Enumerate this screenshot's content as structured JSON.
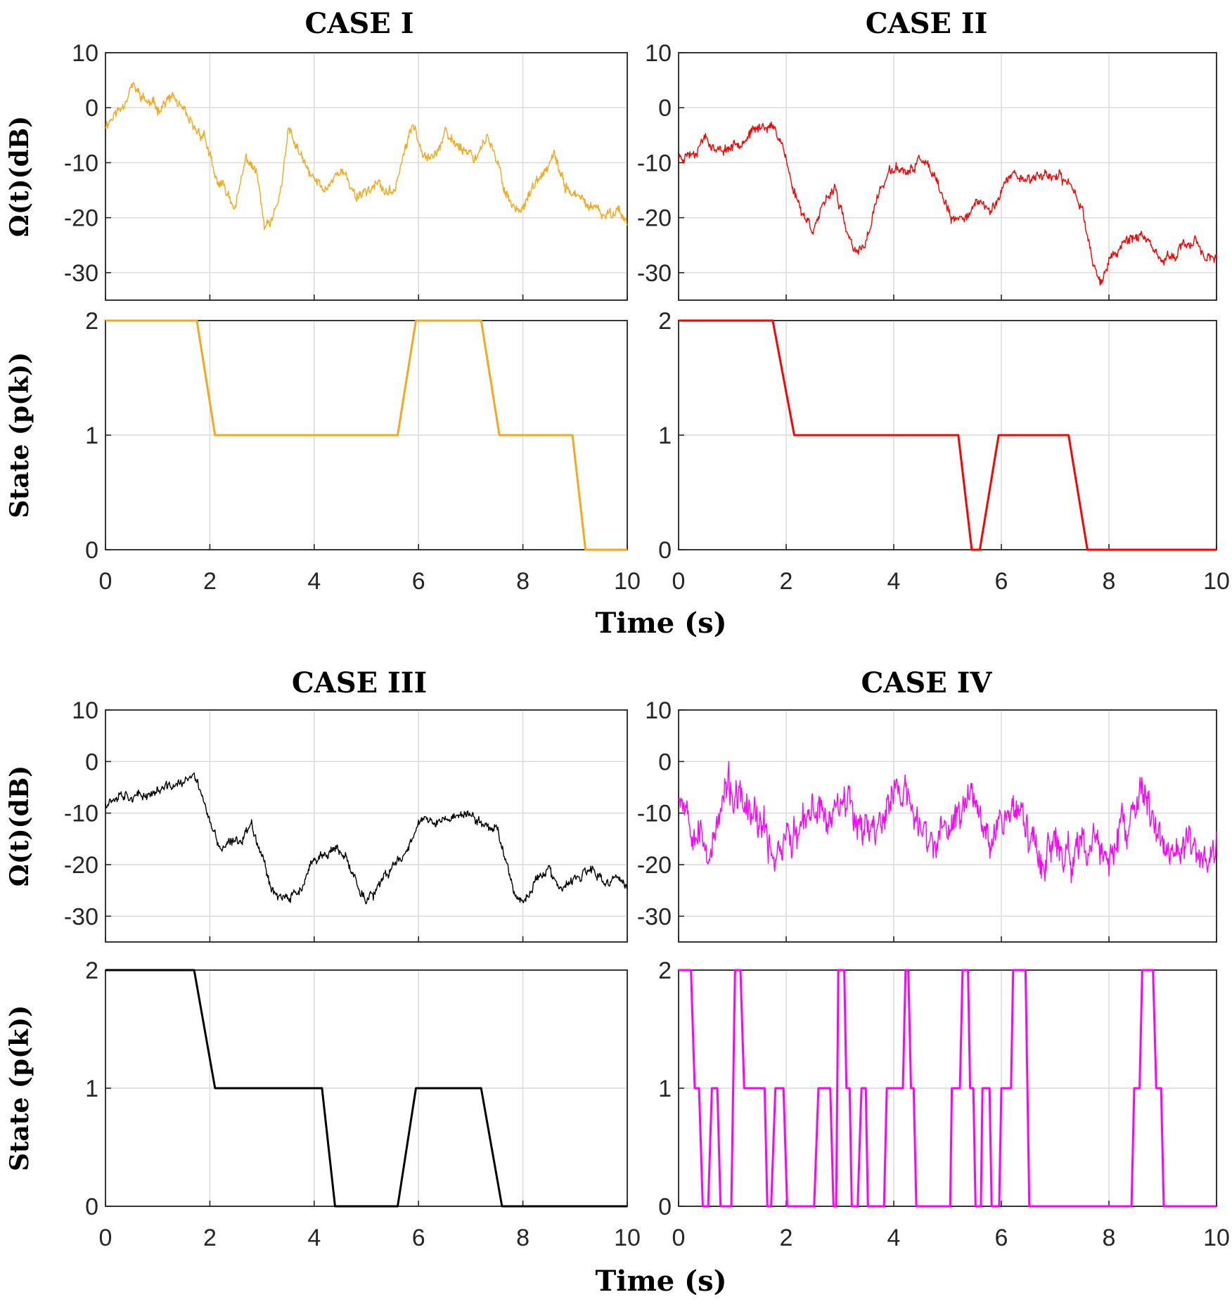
{
  "chart_data": {
    "type": "line",
    "figure": "Channel gain and state sequence per case",
    "panel_columns": [
      "left",
      "right"
    ],
    "shared_axes": {
      "xlabel": "Time (s)",
      "x_range": [
        0,
        10
      ],
      "x_ticks": [
        "0",
        "2",
        "4",
        "6",
        "8",
        "10"
      ],
      "signal_ylabel": "Ω(t)(dB)",
      "signal_y_range": [
        -35,
        10
      ],
      "signal_y_ticks": [
        "10",
        "0",
        "-10",
        "-20",
        "-30"
      ],
      "signal_y_tick_values": [
        10,
        0,
        -10,
        -20,
        -30
      ],
      "state_ylabel": "State (p(k))",
      "state_y_range": [
        0,
        2
      ],
      "state_y_ticks": [
        "2",
        "1",
        "0"
      ],
      "state_y_tick_values": [
        2,
        1,
        0
      ],
      "grid": true
    },
    "cases": [
      {
        "title": "CASE I",
        "color": "#f5a81c",
        "signal_anchors": [
          [
            0,
            -3
          ],
          [
            0.3,
            0
          ],
          [
            0.5,
            4
          ],
          [
            0.8,
            1
          ],
          [
            1.0,
            0
          ],
          [
            1.3,
            2
          ],
          [
            1.5,
            -1
          ],
          [
            1.7,
            -4
          ],
          [
            1.9,
            -5
          ],
          [
            2.1,
            -13
          ],
          [
            2.3,
            -15
          ],
          [
            2.5,
            -18
          ],
          [
            2.7,
            -9
          ],
          [
            2.9,
            -12
          ],
          [
            3.05,
            -22
          ],
          [
            3.2,
            -21
          ],
          [
            3.4,
            -13
          ],
          [
            3.5,
            -4
          ],
          [
            3.7,
            -8
          ],
          [
            3.9,
            -12
          ],
          [
            4.2,
            -15
          ],
          [
            4.5,
            -11
          ],
          [
            4.8,
            -16
          ],
          [
            5.2,
            -14
          ],
          [
            5.5,
            -16
          ],
          [
            5.7,
            -9
          ],
          [
            5.9,
            -3
          ],
          [
            6.1,
            -8
          ],
          [
            6.3,
            -9
          ],
          [
            6.5,
            -5
          ],
          [
            6.8,
            -7
          ],
          [
            7.1,
            -9
          ],
          [
            7.3,
            -5
          ],
          [
            7.5,
            -10
          ],
          [
            7.7,
            -16
          ],
          [
            7.9,
            -19
          ],
          [
            8.1,
            -16
          ],
          [
            8.4,
            -12
          ],
          [
            8.6,
            -9
          ],
          [
            8.8,
            -14
          ],
          [
            9.0,
            -16
          ],
          [
            9.3,
            -18
          ],
          [
            9.6,
            -20
          ],
          [
            9.8,
            -18
          ],
          [
            10,
            -21
          ]
        ],
        "signal_noise": 1.2,
        "seed": 11,
        "state_points": [
          [
            0,
            2
          ],
          [
            1.75,
            2
          ],
          [
            2.1,
            1
          ],
          [
            5.6,
            1
          ],
          [
            5.95,
            2
          ],
          [
            7.2,
            2
          ],
          [
            7.55,
            1
          ],
          [
            8.95,
            1
          ],
          [
            9.2,
            0
          ],
          [
            10,
            0
          ]
        ]
      },
      {
        "title": "CASE II",
        "color": "#ff0000",
        "signal_anchors": [
          [
            0,
            -9
          ],
          [
            0.3,
            -8
          ],
          [
            0.5,
            -5
          ],
          [
            0.7,
            -8
          ],
          [
            1.0,
            -7
          ],
          [
            1.3,
            -5
          ],
          [
            1.6,
            -3
          ],
          [
            1.8,
            -4
          ],
          [
            1.95,
            -7
          ],
          [
            2.1,
            -14
          ],
          [
            2.3,
            -19
          ],
          [
            2.5,
            -22
          ],
          [
            2.7,
            -18
          ],
          [
            2.9,
            -14
          ],
          [
            3.1,
            -22
          ],
          [
            3.3,
            -27
          ],
          [
            3.5,
            -24
          ],
          [
            3.7,
            -16
          ],
          [
            3.9,
            -12
          ],
          [
            4.1,
            -11
          ],
          [
            4.3,
            -12
          ],
          [
            4.5,
            -9
          ],
          [
            4.7,
            -12
          ],
          [
            4.9,
            -16
          ],
          [
            5.1,
            -21
          ],
          [
            5.4,
            -19
          ],
          [
            5.6,
            -17
          ],
          [
            5.8,
            -19
          ],
          [
            6.0,
            -15
          ],
          [
            6.2,
            -12
          ],
          [
            6.5,
            -13
          ],
          [
            6.8,
            -12
          ],
          [
            7.1,
            -13
          ],
          [
            7.3,
            -14
          ],
          [
            7.5,
            -18
          ],
          [
            7.7,
            -28
          ],
          [
            7.85,
            -32
          ],
          [
            8.0,
            -28
          ],
          [
            8.3,
            -24
          ],
          [
            8.6,
            -23
          ],
          [
            8.8,
            -26
          ],
          [
            9.0,
            -28
          ],
          [
            9.3,
            -26
          ],
          [
            9.6,
            -24
          ],
          [
            9.8,
            -27
          ],
          [
            10,
            -28
          ]
        ],
        "signal_noise": 1.1,
        "seed": 23,
        "state_points": [
          [
            0,
            2
          ],
          [
            1.75,
            2
          ],
          [
            2.15,
            1
          ],
          [
            5.2,
            1
          ],
          [
            5.45,
            0
          ],
          [
            5.6,
            0
          ],
          [
            5.95,
            1
          ],
          [
            7.25,
            1
          ],
          [
            7.6,
            0
          ],
          [
            10,
            0
          ]
        ]
      },
      {
        "title": "CASE III",
        "color": "#000000",
        "signal_anchors": [
          [
            0,
            -8
          ],
          [
            0.3,
            -6
          ],
          [
            0.6,
            -7
          ],
          [
            0.9,
            -6
          ],
          [
            1.2,
            -5
          ],
          [
            1.5,
            -4
          ],
          [
            1.7,
            -3
          ],
          [
            1.85,
            -6
          ],
          [
            2.0,
            -12
          ],
          [
            2.2,
            -17
          ],
          [
            2.4,
            -16
          ],
          [
            2.6,
            -15
          ],
          [
            2.8,
            -12
          ],
          [
            3.0,
            -18
          ],
          [
            3.2,
            -25
          ],
          [
            3.5,
            -27
          ],
          [
            3.8,
            -24
          ],
          [
            4.0,
            -19
          ],
          [
            4.2,
            -18
          ],
          [
            4.4,
            -17
          ],
          [
            4.6,
            -19
          ],
          [
            4.8,
            -23
          ],
          [
            5.0,
            -27
          ],
          [
            5.2,
            -25
          ],
          [
            5.4,
            -22
          ],
          [
            5.6,
            -19
          ],
          [
            5.8,
            -17
          ],
          [
            6.0,
            -11
          ],
          [
            6.3,
            -12
          ],
          [
            6.6,
            -11
          ],
          [
            6.9,
            -10
          ],
          [
            7.2,
            -12
          ],
          [
            7.5,
            -13
          ],
          [
            7.7,
            -20
          ],
          [
            7.9,
            -27
          ],
          [
            8.1,
            -26
          ],
          [
            8.3,
            -22
          ],
          [
            8.5,
            -21
          ],
          [
            8.7,
            -25
          ],
          [
            9.0,
            -23
          ],
          [
            9.3,
            -21
          ],
          [
            9.6,
            -24
          ],
          [
            9.8,
            -22
          ],
          [
            10,
            -25
          ]
        ],
        "signal_noise": 1.1,
        "seed": 37,
        "state_points": [
          [
            0,
            2
          ],
          [
            1.7,
            2
          ],
          [
            2.1,
            1
          ],
          [
            4.15,
            1
          ],
          [
            4.4,
            0
          ],
          [
            5.6,
            0
          ],
          [
            5.95,
            1
          ],
          [
            7.2,
            1
          ],
          [
            7.6,
            0
          ],
          [
            10,
            0
          ]
        ]
      },
      {
        "title": "CASE IV",
        "color": "#ff00ff",
        "signal_anchors": [
          [
            0,
            -5
          ],
          [
            0.3,
            -12
          ],
          [
            0.6,
            -18
          ],
          [
            0.9,
            -5
          ],
          [
            1.1,
            -8
          ],
          [
            1.3,
            -10
          ],
          [
            1.6,
            -14
          ],
          [
            1.8,
            -18
          ],
          [
            2.0,
            -14
          ],
          [
            2.2,
            -15
          ],
          [
            2.4,
            -12
          ],
          [
            2.6,
            -8
          ],
          [
            2.8,
            -12
          ],
          [
            3.0,
            -5
          ],
          [
            3.3,
            -10
          ],
          [
            3.6,
            -14
          ],
          [
            3.8,
            -10
          ],
          [
            4.1,
            -5
          ],
          [
            4.3,
            -8
          ],
          [
            4.5,
            -14
          ],
          [
            4.8,
            -16
          ],
          [
            5.1,
            -12
          ],
          [
            5.3,
            -8
          ],
          [
            5.5,
            -6
          ],
          [
            5.8,
            -14
          ],
          [
            6.1,
            -10
          ],
          [
            6.3,
            -8
          ],
          [
            6.5,
            -15
          ],
          [
            6.8,
            -18
          ],
          [
            7.1,
            -17
          ],
          [
            7.4,
            -19
          ],
          [
            7.7,
            -16
          ],
          [
            8.0,
            -18
          ],
          [
            8.2,
            -15
          ],
          [
            8.4,
            -12
          ],
          [
            8.6,
            -6
          ],
          [
            8.8,
            -10
          ],
          [
            9.0,
            -16
          ],
          [
            9.3,
            -18
          ],
          [
            9.6,
            -17
          ],
          [
            9.8,
            -19
          ],
          [
            10,
            -17
          ]
        ],
        "signal_noise": 4.2,
        "seed": 53,
        "state_points": [
          [
            0,
            2
          ],
          [
            0.23,
            2
          ],
          [
            0.3,
            1
          ],
          [
            0.38,
            1
          ],
          [
            0.45,
            0
          ],
          [
            0.55,
            0
          ],
          [
            0.62,
            1
          ],
          [
            0.72,
            1
          ],
          [
            0.78,
            0
          ],
          [
            0.98,
            0
          ],
          [
            1.05,
            2
          ],
          [
            1.15,
            2
          ],
          [
            1.22,
            1
          ],
          [
            1.6,
            1
          ],
          [
            1.65,
            0
          ],
          [
            1.72,
            0
          ],
          [
            1.8,
            1
          ],
          [
            1.95,
            1
          ],
          [
            2.02,
            0
          ],
          [
            2.52,
            0
          ],
          [
            2.6,
            1
          ],
          [
            2.82,
            1
          ],
          [
            2.88,
            0
          ],
          [
            2.93,
            0
          ],
          [
            2.97,
            2
          ],
          [
            3.08,
            2
          ],
          [
            3.12,
            1
          ],
          [
            3.18,
            1
          ],
          [
            3.22,
            0
          ],
          [
            3.33,
            0
          ],
          [
            3.4,
            1
          ],
          [
            3.48,
            1
          ],
          [
            3.52,
            0
          ],
          [
            3.82,
            0
          ],
          [
            3.87,
            1
          ],
          [
            4.17,
            1
          ],
          [
            4.22,
            2
          ],
          [
            4.27,
            2
          ],
          [
            4.32,
            1
          ],
          [
            4.37,
            1
          ],
          [
            4.42,
            0
          ],
          [
            5.05,
            0
          ],
          [
            5.08,
            1
          ],
          [
            5.23,
            1
          ],
          [
            5.28,
            2
          ],
          [
            5.38,
            2
          ],
          [
            5.42,
            1
          ],
          [
            5.48,
            1
          ],
          [
            5.52,
            0
          ],
          [
            5.62,
            0
          ],
          [
            5.65,
            1
          ],
          [
            5.78,
            1
          ],
          [
            5.82,
            0
          ],
          [
            5.96,
            0
          ],
          [
            6.0,
            1
          ],
          [
            6.18,
            1
          ],
          [
            6.22,
            2
          ],
          [
            6.45,
            2
          ],
          [
            6.52,
            0
          ],
          [
            8.42,
            0
          ],
          [
            8.47,
            1
          ],
          [
            8.57,
            1
          ],
          [
            8.62,
            2
          ],
          [
            8.82,
            2
          ],
          [
            8.88,
            1
          ],
          [
            8.97,
            1
          ],
          [
            9.02,
            0
          ],
          [
            10,
            0
          ]
        ]
      }
    ]
  }
}
